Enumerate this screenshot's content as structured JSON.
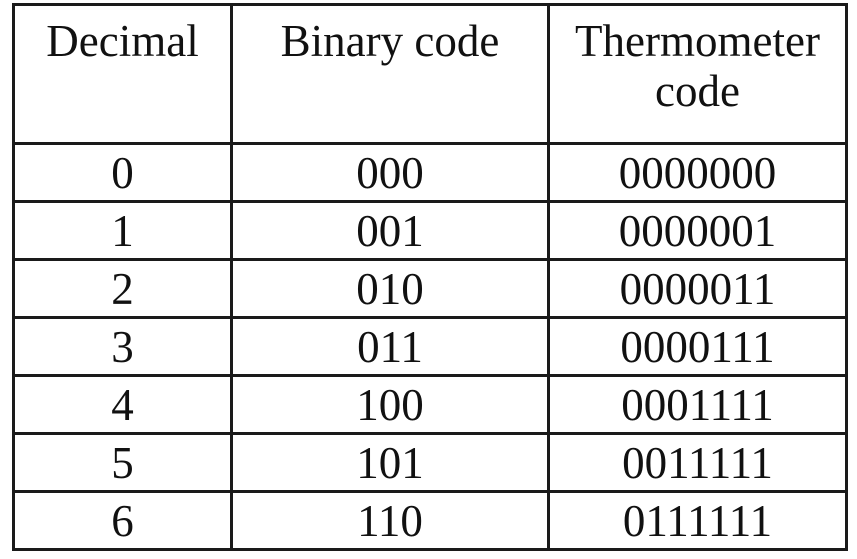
{
  "table": {
    "headers": [
      "Decimal",
      "Binary code",
      "Thermometer code"
    ],
    "rows": [
      [
        "0",
        "000",
        "0000000"
      ],
      [
        "1",
        "001",
        "0000001"
      ],
      [
        "2",
        "010",
        "0000011"
      ],
      [
        "3",
        "011",
        "0000111"
      ],
      [
        "4",
        "100",
        "0001111"
      ],
      [
        "5",
        "101",
        "0011111"
      ],
      [
        "6",
        "110",
        "0111111"
      ]
    ]
  }
}
